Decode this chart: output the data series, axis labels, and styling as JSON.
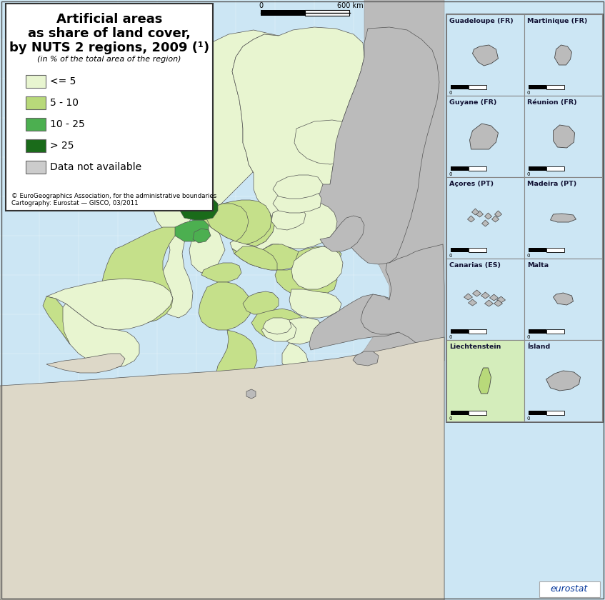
{
  "title_line1": "Artificial areas",
  "title_line2": "as share of land cover,",
  "title_line3": "by NUTS 2 regions, 2009 (¹)",
  "title_subtitle": "(in % of the total area of the region)",
  "legend_items": [
    {
      "label": "<= 5",
      "color": "#e8f5d0"
    },
    {
      "label": "5 - 10",
      "color": "#b8d97a"
    },
    {
      "label": "10 - 25",
      "color": "#4caf50"
    },
    {
      "label": "> 25",
      "color": "#1a6b1a"
    },
    {
      "label": "Data not available",
      "color": "#cccccc"
    }
  ],
  "background_color": "#cce6f4",
  "land_na_color": "#bbbbbb",
  "land_outside_color": "#ddd8c8",
  "box_bg": "#ffffff",
  "border_color": "#333333",
  "inset_bg": "#cce6f4",
  "inset_border": "#555555",
  "copyright_text": "© EuroGeographics Association, for the administrative boundaries\nCartography: Eurostat — GISCO, 03/2011",
  "eurostat_label": "eurostat",
  "inset_titles": [
    "Guadeloupe (FR)",
    "Martinique (FR)",
    "Guyane (FR)",
    "Réunion (FR)",
    "Açores (PT)",
    "Madeira (PT)",
    "Canarias (ES)",
    "Malta",
    "Liechtenstein",
    "Ísland"
  ],
  "liechtenstein_color": "#d4edbb",
  "title_fontsize": 13,
  "legend_fontsize": 10,
  "small_fontsize": 7,
  "col1_green": "#e8f5d0",
  "col2_green": "#c5e08a",
  "col3_green": "#4caf50",
  "col4_green": "#1a6b1a",
  "col_grey": "#bbbbbb",
  "col_outside": "#ddd8c8",
  "col_water": "#cce6f4"
}
